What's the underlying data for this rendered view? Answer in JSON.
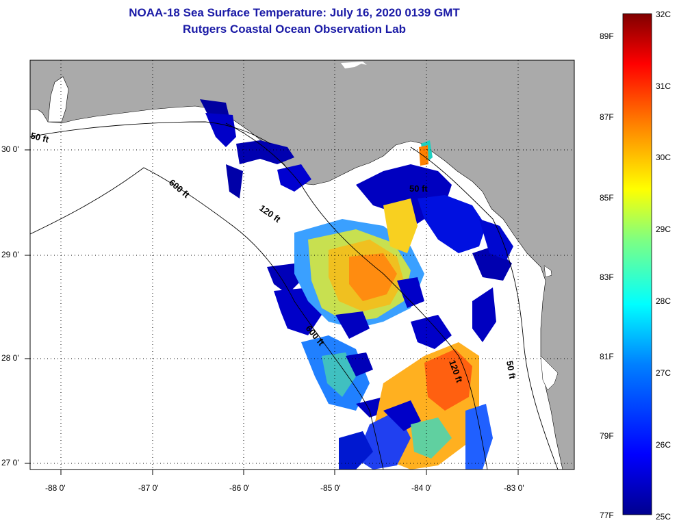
{
  "title": {
    "line1": "NOAA-18 Sea Surface Temperature:  July 16, 2020 0139 GMT",
    "line2": "Rutgers Coastal Ocean Observation Lab"
  },
  "axes": {
    "longitude_labels": [
      "-88 0'",
      "-87 0'",
      "-86 0'",
      "-85 0'",
      "-84 0'",
      "-83 0'"
    ],
    "latitude_labels": [
      "30 0'",
      "29 0'",
      "28 0'",
      "27 0'"
    ]
  },
  "contours": {
    "labels": [
      "50 ft",
      "600 ft",
      "120 ft",
      "50 ft",
      "600 ft",
      "120 ft",
      "50 ft"
    ]
  },
  "colorbar": {
    "fahrenheit_labels": [
      "89F",
      "87F",
      "85F",
      "83F",
      "81F",
      "79F",
      "77F"
    ],
    "celsius_labels": [
      "32C",
      "31C",
      "30C",
      "29C",
      "28C",
      "27C",
      "26C",
      "25C"
    ],
    "min_c": 25,
    "max_c": 32,
    "colors": [
      "#00008f",
      "#0000ff",
      "#0080ff",
      "#00ffff",
      "#80ff80",
      "#ffff00",
      "#ff8000",
      "#ff0000",
      "#800000"
    ]
  },
  "colors": {
    "land": "#aaaaaa",
    "water": "#ffffff",
    "title": "#1a1aa6"
  }
}
